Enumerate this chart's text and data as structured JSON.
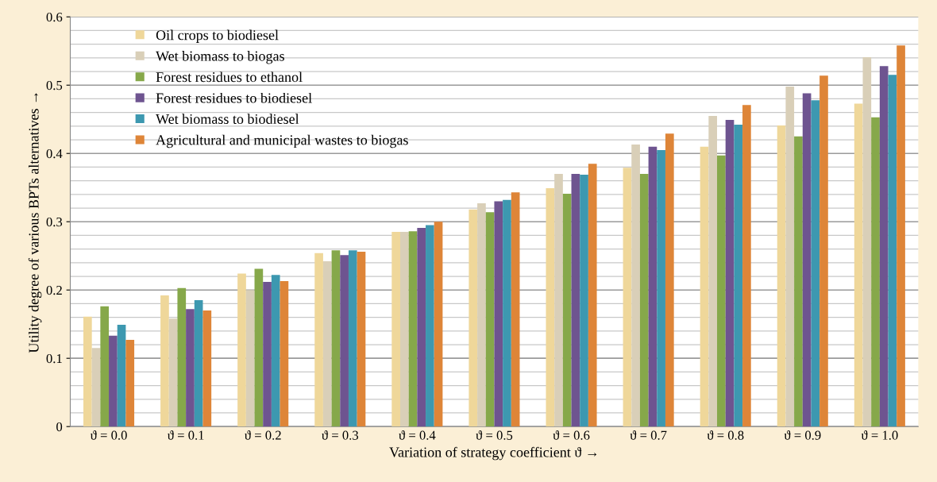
{
  "chart_data": {
    "type": "bar",
    "xlabel": "Variation of strategy coefficient ϑ →",
    "ylabel": "Utility degree of various BPTs alternatives →",
    "categories": [
      "ϑ = 0.0",
      "ϑ = 0.1",
      "ϑ = 0.2",
      "ϑ = 0.3",
      "ϑ = 0.4",
      "ϑ = 0.5",
      "ϑ = 0.6",
      "ϑ = 0.7",
      "ϑ = 0.8",
      "ϑ = 0.9",
      "ϑ = 1.0"
    ],
    "series": [
      {
        "name": "Oil crops to biodiesel",
        "color": "#efd79a",
        "values": [
          0.161,
          0.192,
          0.224,
          0.254,
          0.285,
          0.318,
          0.349,
          0.379,
          0.41,
          0.441,
          0.473
        ]
      },
      {
        "name": "Wet biomass to biogas",
        "color": "#d9cfb8",
        "values": [
          0.115,
          0.158,
          0.2,
          0.242,
          0.285,
          0.327,
          0.37,
          0.413,
          0.455,
          0.498,
          0.541
        ]
      },
      {
        "name": "Forest residues to ethanol",
        "color": "#86a84a",
        "values": [
          0.176,
          0.203,
          0.231,
          0.258,
          0.286,
          0.314,
          0.341,
          0.37,
          0.397,
          0.425,
          0.453
        ]
      },
      {
        "name": "Forest residues to biodiesel",
        "color": "#6e5490",
        "values": [
          0.133,
          0.172,
          0.212,
          0.251,
          0.291,
          0.33,
          0.37,
          0.41,
          0.449,
          0.488,
          0.528
        ]
      },
      {
        "name": "Wet biomass to biodiesel",
        "color": "#3d98b0",
        "values": [
          0.149,
          0.185,
          0.222,
          0.258,
          0.295,
          0.332,
          0.369,
          0.405,
          0.442,
          0.478,
          0.515
        ]
      },
      {
        "name": "Agricultural and municipal wastes to biogas",
        "color": "#de8538",
        "values": [
          0.127,
          0.17,
          0.213,
          0.256,
          0.3,
          0.343,
          0.385,
          0.429,
          0.471,
          0.514,
          0.558
        ]
      }
    ],
    "ylim": [
      0,
      0.6
    ],
    "yticks": [
      0,
      0.1,
      0.2,
      0.3,
      0.4,
      0.5,
      0.6
    ],
    "grid": "y",
    "legend": "top left"
  }
}
